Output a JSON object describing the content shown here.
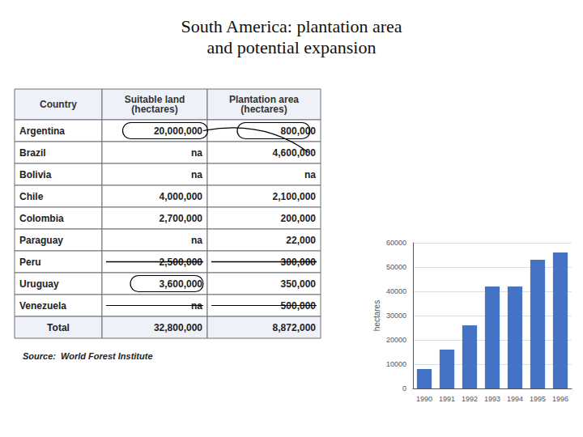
{
  "chart_data": [
    {
      "type": "table",
      "title": "South America: plantation area\nand potential expansion",
      "columns": [
        "Country",
        "Suitable land\n(hectares)",
        "Plantation area\n(hectares)"
      ],
      "rows": [
        [
          "Argentina",
          "20,000,000",
          "800,000"
        ],
        [
          "Brazil",
          "na",
          "4,600,000"
        ],
        [
          "Bolivia",
          "na",
          "na"
        ],
        [
          "Chile",
          "4,000,000",
          "2,100,000"
        ],
        [
          "Colombia",
          "2,700,000",
          "200,000"
        ],
        [
          "Paraguay",
          "na",
          "22,000"
        ],
        [
          "Peru",
          "2,500,000",
          "300,000"
        ],
        [
          "Uruguay",
          "3,600,000",
          "350,000"
        ],
        [
          "Venezuela",
          "na",
          "500,000"
        ]
      ],
      "total": [
        "Total",
        "32,800,000",
        "8,872,000"
      ],
      "annotations": [
        "Source:  World Forest Institute"
      ]
    },
    {
      "type": "bar",
      "categories": [
        "1990",
        "1991",
        "1992",
        "1993",
        "1994",
        "1995",
        "1996"
      ],
      "values": [
        8000,
        16000,
        26000,
        42000,
        42000,
        53000,
        56000
      ],
      "color": "#4472c4",
      "ylabel": "hectares",
      "ylim": [
        0,
        60000
      ],
      "yticks": [
        0,
        10000,
        20000,
        30000,
        40000,
        50000,
        60000
      ],
      "grid": true
    }
  ]
}
